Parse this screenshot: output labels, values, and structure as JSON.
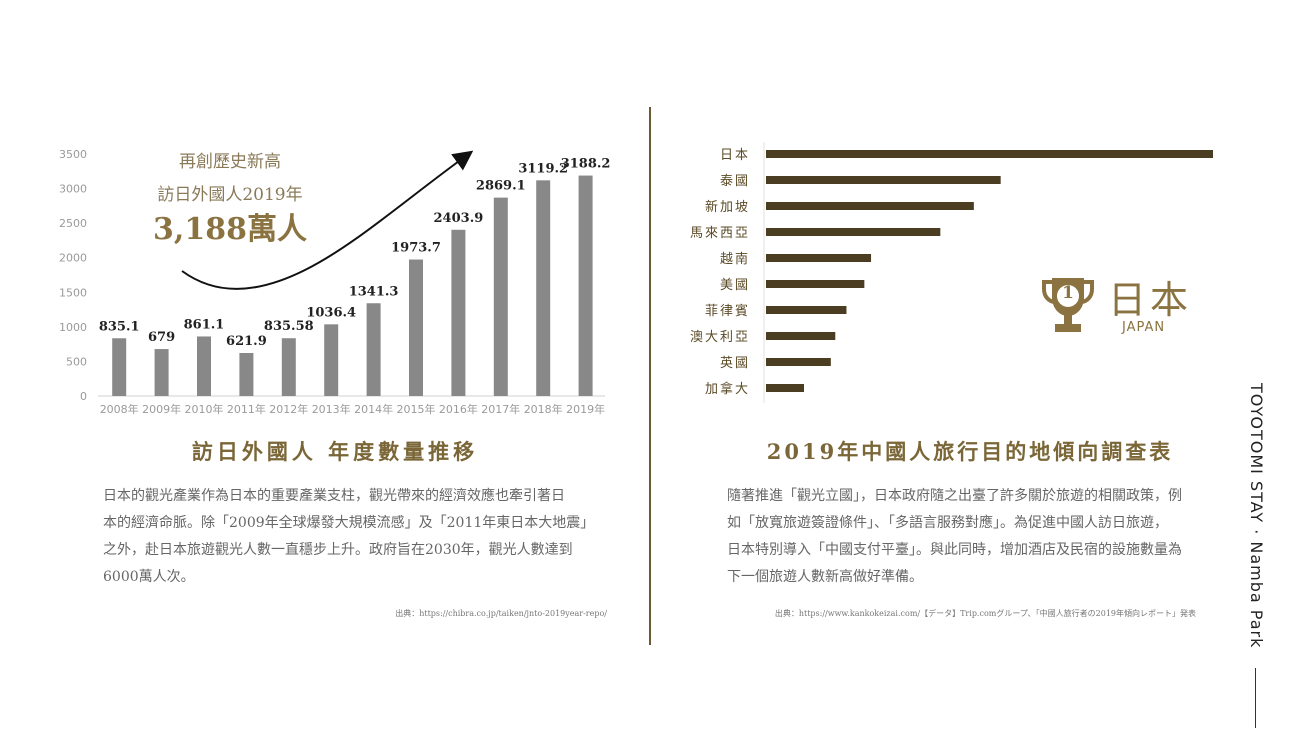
{
  "left_chart": {
    "chart_data": {
      "type": "bar",
      "categories": [
        "2008年",
        "2009年",
        "2010年",
        "2011年",
        "2012年",
        "2013年",
        "2014年",
        "2015年",
        "2016年",
        "2017年",
        "2018年",
        "2019年"
      ],
      "values": [
        835.1,
        679,
        861.1,
        621.9,
        835.58,
        1036.4,
        1341.3,
        1973.7,
        2403.9,
        2869.1,
        3119.2,
        3188.2
      ],
      "value_labels": [
        "835.1",
        "679",
        "861.1",
        "621.9",
        "835.58",
        "1036.4",
        "1341.3",
        "1973.7",
        "2403.9",
        "2869.1",
        "3119.2",
        "3188.2"
      ],
      "yticks": [
        "0",
        "500",
        "1000",
        "1500",
        "2000",
        "2500",
        "3000",
        "3500"
      ],
      "ylim": [
        0,
        3500
      ],
      "bar_color": "#888888"
    },
    "annotation": {
      "line1": "再創歷史新高",
      "line2": "訪日外國人2019年",
      "line3": "3,188萬人"
    },
    "caption": "訪日外國人 年度數量推移",
    "paragraph_lines": [
      "日本的觀光產業作為日本的重要產業支柱，觀光帶來的經濟效應也牽引著日",
      "本的經濟命脈。除「2009年全球爆發大規模流感」及「2011年東日本大地震」",
      "之外，赴日本旅遊觀光人數一直穩步上升。政府旨在2030年，觀光人數達到",
      "6000萬人次。"
    ],
    "source": "出典：https://chibra.co.jp/taiken/jnto-2019year-repo/"
  },
  "right_chart": {
    "chart_data": {
      "type": "bar",
      "orientation": "horizontal",
      "categories": [
        "日本",
        "泰國",
        "新加坡",
        "馬來西亞",
        "越南",
        "美國",
        "菲律賓",
        "澳大利亞",
        "英國",
        "加拿大"
      ],
      "values": [
        100,
        52.5,
        46.5,
        39,
        23.5,
        22,
        18,
        15.5,
        14.5,
        8.5
      ],
      "bar_color": "#4a3d22"
    },
    "badge": {
      "number": "1",
      "title": "日本",
      "subtitle": "JAPAN",
      "color": "#8a7340"
    },
    "caption": "2019年中國人旅行目的地傾向調查表",
    "paragraph_lines": [
      "隨著推進「觀光立國」，日本政府隨之出臺了許多關於旅遊的相關政策，例",
      "如「放寬旅遊簽證條件」、「多語言服務對應」。為促進中國人訪日旅遊，",
      "日本特別導入「中國支付平臺」。與此同時，增加酒店及民宿的設施數量為",
      "下一個旅遊人數新高做好準備。"
    ],
    "source": "出典：https://www.kankokeizai.com/【データ】Trip.comグループ、「中國人旅行者の2019年傾向レポート」発表"
  },
  "side_title": "TOYOTOMI STAY · Namba Park",
  "colors": {
    "gold": "#8a7340",
    "dark_gold": "#7a6637",
    "divider": "#6b5a36"
  }
}
